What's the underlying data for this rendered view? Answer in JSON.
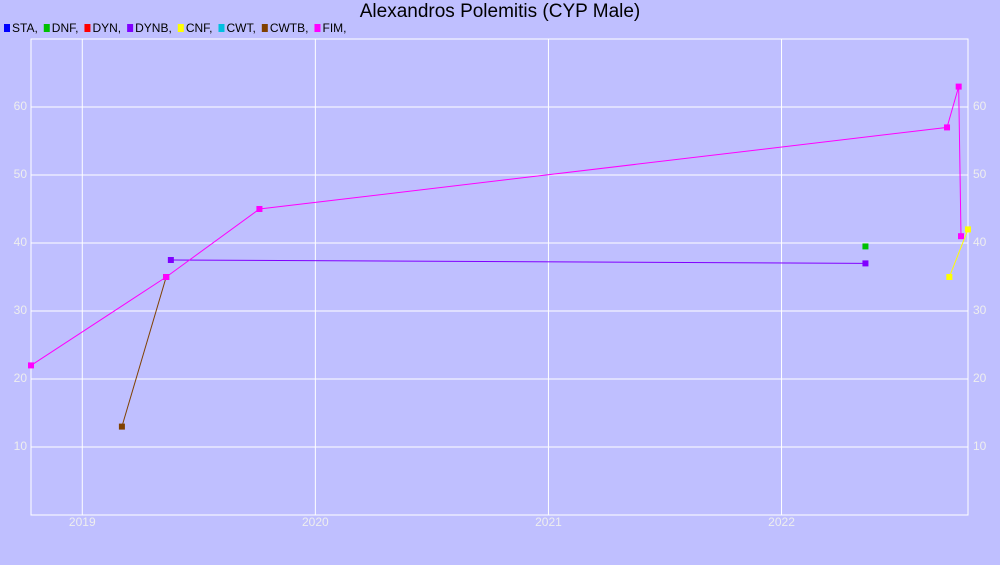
{
  "chart_data": {
    "type": "line",
    "title": "Alexandros Polemitis (CYP Male)",
    "xlim": [
      2018.78,
      2022.8
    ],
    "xticks": [
      2019,
      2020,
      2021,
      2022
    ],
    "ylim": [
      0,
      70
    ],
    "yticks": [
      10,
      20,
      30,
      40,
      50,
      60
    ],
    "grid": true,
    "series": [
      {
        "name": "STA,",
        "color": "#0000ff",
        "x": [],
        "values": []
      },
      {
        "name": "DNF,",
        "color": "#00c000",
        "x": [
          2022.36
        ],
        "values": [
          39.5
        ]
      },
      {
        "name": "DYN,",
        "color": "#ff0000",
        "x": [],
        "values": []
      },
      {
        "name": "DYNB,",
        "color": "#8000ff",
        "x": [
          2019.38,
          2022.36
        ],
        "values": [
          37.5,
          37
        ]
      },
      {
        "name": "CNF,",
        "color": "#ffff00",
        "x": [
          2022.72,
          2022.8
        ],
        "values": [
          35,
          42
        ]
      },
      {
        "name": "CWT,",
        "color": "#00c0e0",
        "x": [],
        "values": []
      },
      {
        "name": "CWTB,",
        "color": "#804000",
        "x": [
          2019.17,
          2019.36
        ],
        "values": [
          13,
          35
        ]
      },
      {
        "name": "FIM,",
        "color": "#ff00ff",
        "x": [
          2018.78,
          2019.36,
          2019.76,
          2022.71,
          2022.76,
          2022.77
        ],
        "values": [
          22,
          35,
          45,
          57,
          63,
          41
        ]
      }
    ]
  }
}
